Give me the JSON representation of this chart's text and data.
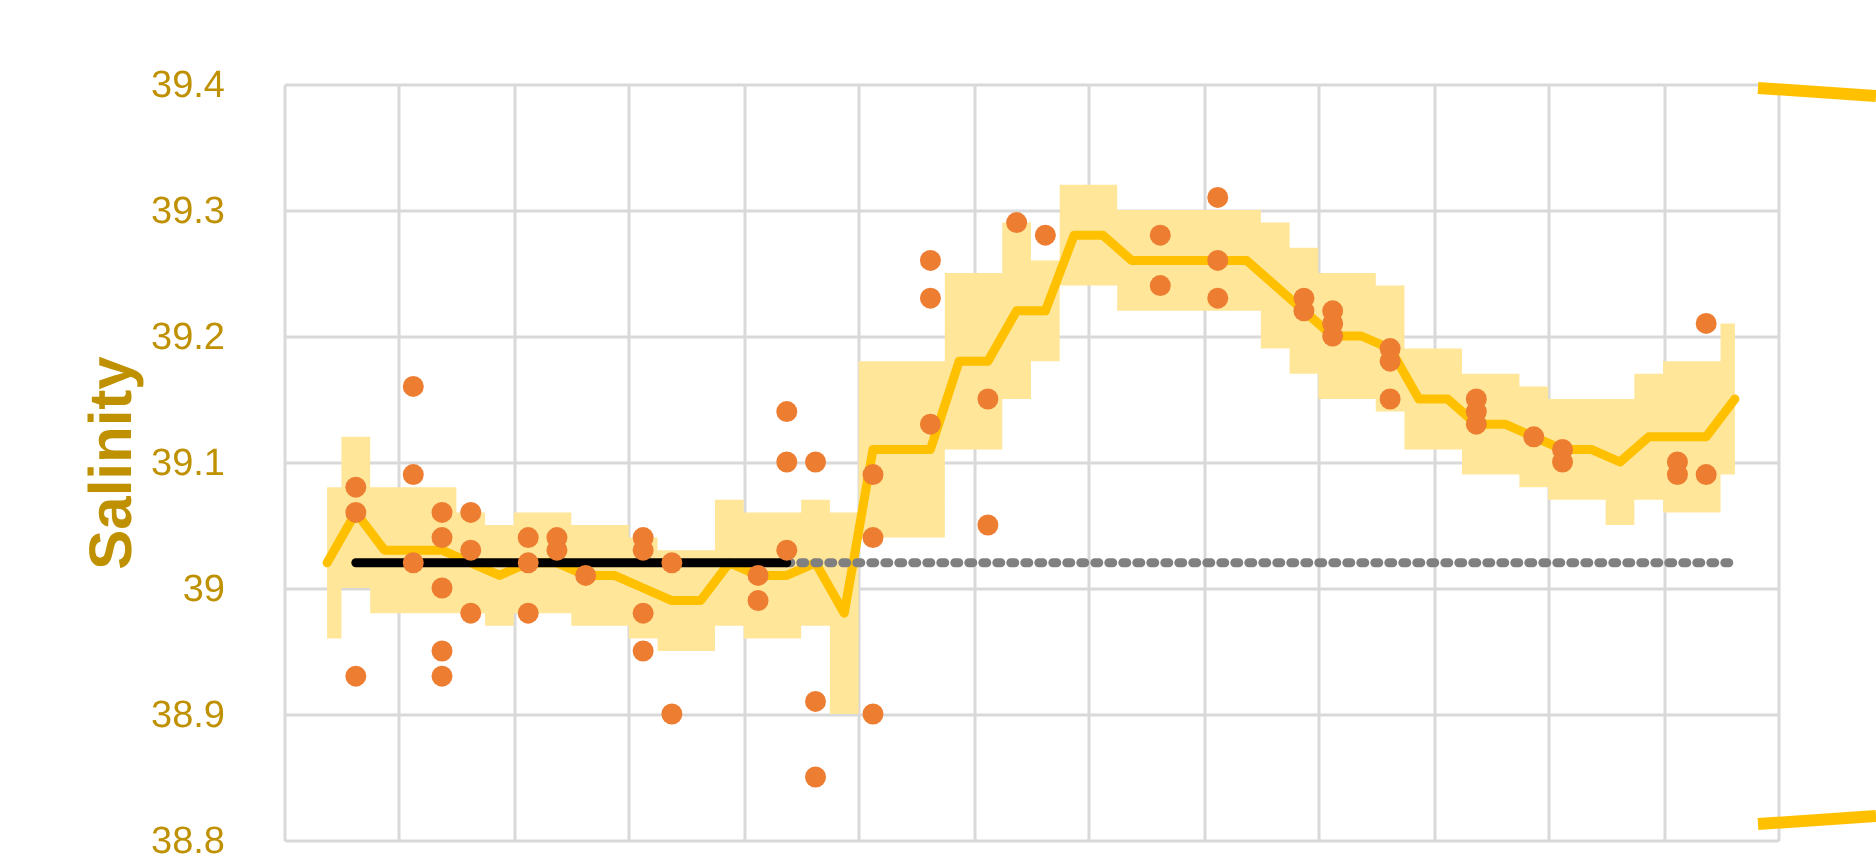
{
  "chart_data": {
    "type": "scatter",
    "ylabel": "Salinity",
    "categories": [
      null,
      null,
      null,
      null,
      null,
      null,
      null,
      null,
      null,
      null,
      null,
      null,
      null,
      null,
      null,
      null,
      null,
      null,
      null,
      null,
      null,
      null,
      null,
      null,
      null,
      null,
      null,
      null,
      null,
      null,
      null,
      null,
      null,
      null,
      null,
      null,
      null,
      null,
      null,
      null,
      null,
      null,
      null,
      null,
      null,
      null,
      null,
      null,
      null,
      null
    ],
    "ylim": [
      38.8,
      39.4
    ],
    "yticks": [
      38.8,
      38.9,
      39,
      39.1,
      39.2,
      39.3,
      39.4
    ],
    "grid": true,
    "tick_labels": "y",
    "series": [
      {
        "type": "line",
        "color": "#ffc000",
        "line_style": "solid",
        "marker": "none",
        "values": [
          39.02,
          39.06,
          39.03,
          39.03,
          39.03,
          39.02,
          39.01,
          39.02,
          39.02,
          39.01,
          39.01,
          39.0,
          38.99,
          38.99,
          39.02,
          39.01,
          39.01,
          39.02,
          38.98,
          39.11,
          39.11,
          39.11,
          39.18,
          39.18,
          39.22,
          39.22,
          39.28,
          39.28,
          39.26,
          39.26,
          39.26,
          39.26,
          39.26,
          39.24,
          39.22,
          39.2,
          39.2,
          39.19,
          39.15,
          39.15,
          39.13,
          39.13,
          39.12,
          39.11,
          39.11,
          39.1,
          39.12,
          39.12,
          39.12,
          39.15
        ],
        "lower": [
          38.96,
          39.0,
          38.98,
          38.98,
          38.98,
          38.98,
          38.97,
          38.98,
          38.98,
          38.97,
          38.97,
          38.96,
          38.95,
          38.95,
          38.97,
          38.96,
          38.96,
          38.97,
          38.9,
          39.04,
          39.04,
          39.04,
          39.11,
          39.11,
          39.15,
          39.18,
          39.24,
          39.24,
          39.22,
          39.22,
          39.22,
          39.22,
          39.22,
          39.19,
          39.17,
          39.15,
          39.15,
          39.14,
          39.11,
          39.11,
          39.09,
          39.09,
          39.08,
          39.07,
          39.07,
          39.05,
          39.07,
          39.06,
          39.06,
          39.09
        ],
        "upper": [
          39.08,
          39.12,
          39.08,
          39.08,
          39.08,
          39.06,
          39.05,
          39.06,
          39.06,
          39.05,
          39.05,
          39.04,
          39.03,
          39.03,
          39.07,
          39.06,
          39.06,
          39.07,
          39.06,
          39.18,
          39.18,
          39.18,
          39.25,
          39.25,
          39.29,
          39.26,
          39.32,
          39.32,
          39.3,
          39.3,
          39.3,
          39.3,
          39.3,
          39.29,
          39.27,
          39.25,
          39.25,
          39.24,
          39.19,
          39.19,
          39.17,
          39.17,
          39.16,
          39.15,
          39.15,
          39.15,
          39.17,
          39.18,
          39.18,
          39.21
        ]
      },
      {
        "type": "line",
        "color": "#808080",
        "line_style": "dotted",
        "marker": "none",
        "values": [
          null,
          null,
          null,
          null,
          null,
          null,
          null,
          null,
          null,
          null,
          null,
          null,
          null,
          null,
          null,
          null,
          39.02,
          39.02,
          39.02,
          39.02,
          39.02,
          39.02,
          39.02,
          39.02,
          39.02,
          39.02,
          39.02,
          39.02,
          39.02,
          39.02,
          39.02,
          39.02,
          39.02,
          39.02,
          39.02,
          39.02,
          39.02,
          39.02,
          39.02,
          39.02,
          39.02,
          39.02,
          39.02,
          39.02,
          39.02,
          39.02,
          39.02,
          39.02,
          39.02,
          39.02
        ]
      },
      {
        "type": "line",
        "color": "#000000",
        "line_style": "solid",
        "marker": "none",
        "values": [
          null,
          39.02,
          39.02,
          39.02,
          39.02,
          39.02,
          39.02,
          39.02,
          39.02,
          39.02,
          39.02,
          39.02,
          39.02,
          39.02,
          39.02,
          39.02,
          39.02,
          null,
          null,
          null,
          null,
          null,
          null,
          null,
          null,
          null,
          null,
          null,
          null,
          null,
          null,
          null,
          null,
          null,
          null,
          null,
          null,
          null,
          null,
          null,
          null,
          null,
          null,
          null,
          null,
          null,
          null,
          null,
          null,
          null
        ]
      },
      {
        "color": "#ed7d31",
        "marker": "circle",
        "values": [
          null,
          39.08,
          null,
          39.16,
          39.06,
          39.06,
          null,
          39.04,
          39.04,
          39.01,
          null,
          39.04,
          39.02,
          null,
          null,
          39.01,
          39.14,
          39.1,
          null,
          39.09,
          null,
          39.26,
          null,
          39.15,
          39.29,
          39.28,
          null,
          null,
          null,
          39.28,
          null,
          39.31,
          null,
          null,
          39.23,
          39.22,
          null,
          39.19,
          null,
          null,
          39.15,
          null,
          39.12,
          39.11,
          null,
          null,
          null,
          39.1,
          39.21,
          null
        ]
      },
      {
        "color": "#ed7d31",
        "marker": "circle",
        "values": [
          null,
          39.06,
          null,
          39.09,
          39.04,
          39.03,
          null,
          39.02,
          39.03,
          null,
          null,
          39.03,
          38.9,
          null,
          null,
          38.99,
          39.1,
          38.91,
          null,
          39.04,
          null,
          39.23,
          null,
          39.05,
          null,
          null,
          null,
          null,
          null,
          39.24,
          null,
          39.26,
          null,
          null,
          39.22,
          39.21,
          null,
          39.18,
          null,
          null,
          39.14,
          null,
          null,
          39.1,
          null,
          null,
          null,
          39.09,
          39.09,
          null
        ]
      },
      {
        "color": "#ed7d31",
        "marker": "circle",
        "values": [
          null,
          38.93,
          null,
          39.02,
          39.0,
          38.98,
          null,
          38.98,
          null,
          null,
          null,
          38.98,
          null,
          null,
          null,
          null,
          39.03,
          38.85,
          null,
          38.9,
          null,
          39.13,
          null,
          null,
          null,
          null,
          null,
          null,
          null,
          null,
          null,
          39.23,
          null,
          null,
          null,
          39.2,
          null,
          39.15,
          null,
          null,
          39.13,
          null,
          null,
          null,
          null,
          null,
          null,
          null,
          null,
          null
        ]
      },
      {
        "color": "#ed7d31",
        "marker": "circle",
        "values": [
          null,
          null,
          null,
          null,
          38.95,
          null,
          null,
          null,
          null,
          null,
          null,
          38.95,
          null,
          null,
          null,
          null,
          null,
          null,
          null,
          null,
          null,
          null,
          null,
          null,
          null,
          null,
          null,
          null,
          null,
          null,
          null,
          null,
          null,
          null,
          null,
          null,
          null,
          null,
          null,
          null,
          null,
          null,
          null,
          null,
          null,
          null,
          null,
          null,
          null,
          null
        ]
      },
      {
        "color": "#ed7d31",
        "marker": "circle",
        "values": [
          null,
          null,
          null,
          null,
          38.93,
          null,
          null,
          null,
          null,
          null,
          null,
          null,
          null,
          null,
          null,
          null,
          null,
          null,
          null,
          null,
          null,
          null,
          null,
          null,
          null,
          null,
          null,
          null,
          null,
          null,
          null,
          null,
          null,
          null,
          null,
          null,
          null,
          null,
          null,
          null,
          null,
          null,
          null,
          null,
          null,
          null,
          null,
          null,
          null,
          null
        ]
      }
    ]
  }
}
